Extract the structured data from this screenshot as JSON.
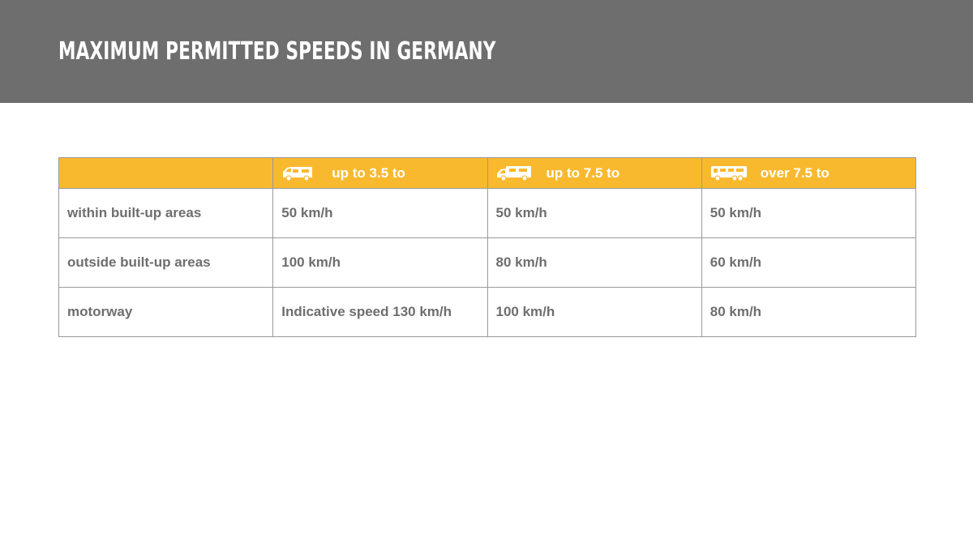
{
  "page": {
    "title": "MAXIMUM PERMITTED SPEEDS IN GERMANY"
  },
  "colors": {
    "header_bar": "#6e6e6e",
    "table_header": "#f9b92f",
    "text_gray": "#6e6e6e",
    "border": "#9a9a9a"
  },
  "table": {
    "columns": [
      {
        "label": "",
        "icon": ""
      },
      {
        "label": "up to 3.5 to",
        "icon": "van-icon"
      },
      {
        "label": "up to 7.5 to",
        "icon": "motorhome-icon"
      },
      {
        "label": "over 7.5 to",
        "icon": "large-motorhome-icon"
      }
    ],
    "rows": [
      {
        "label": "within built-up areas",
        "values": [
          "50 km/h",
          "50 km/h",
          "50 km/h"
        ]
      },
      {
        "label": "outside built-up areas",
        "values": [
          "100 km/h",
          "80 km/h",
          "60 km/h"
        ]
      },
      {
        "label": "motorway",
        "values": [
          "Indicative speed 130 km/h",
          "100 km/h",
          "80 km/h"
        ]
      }
    ]
  }
}
